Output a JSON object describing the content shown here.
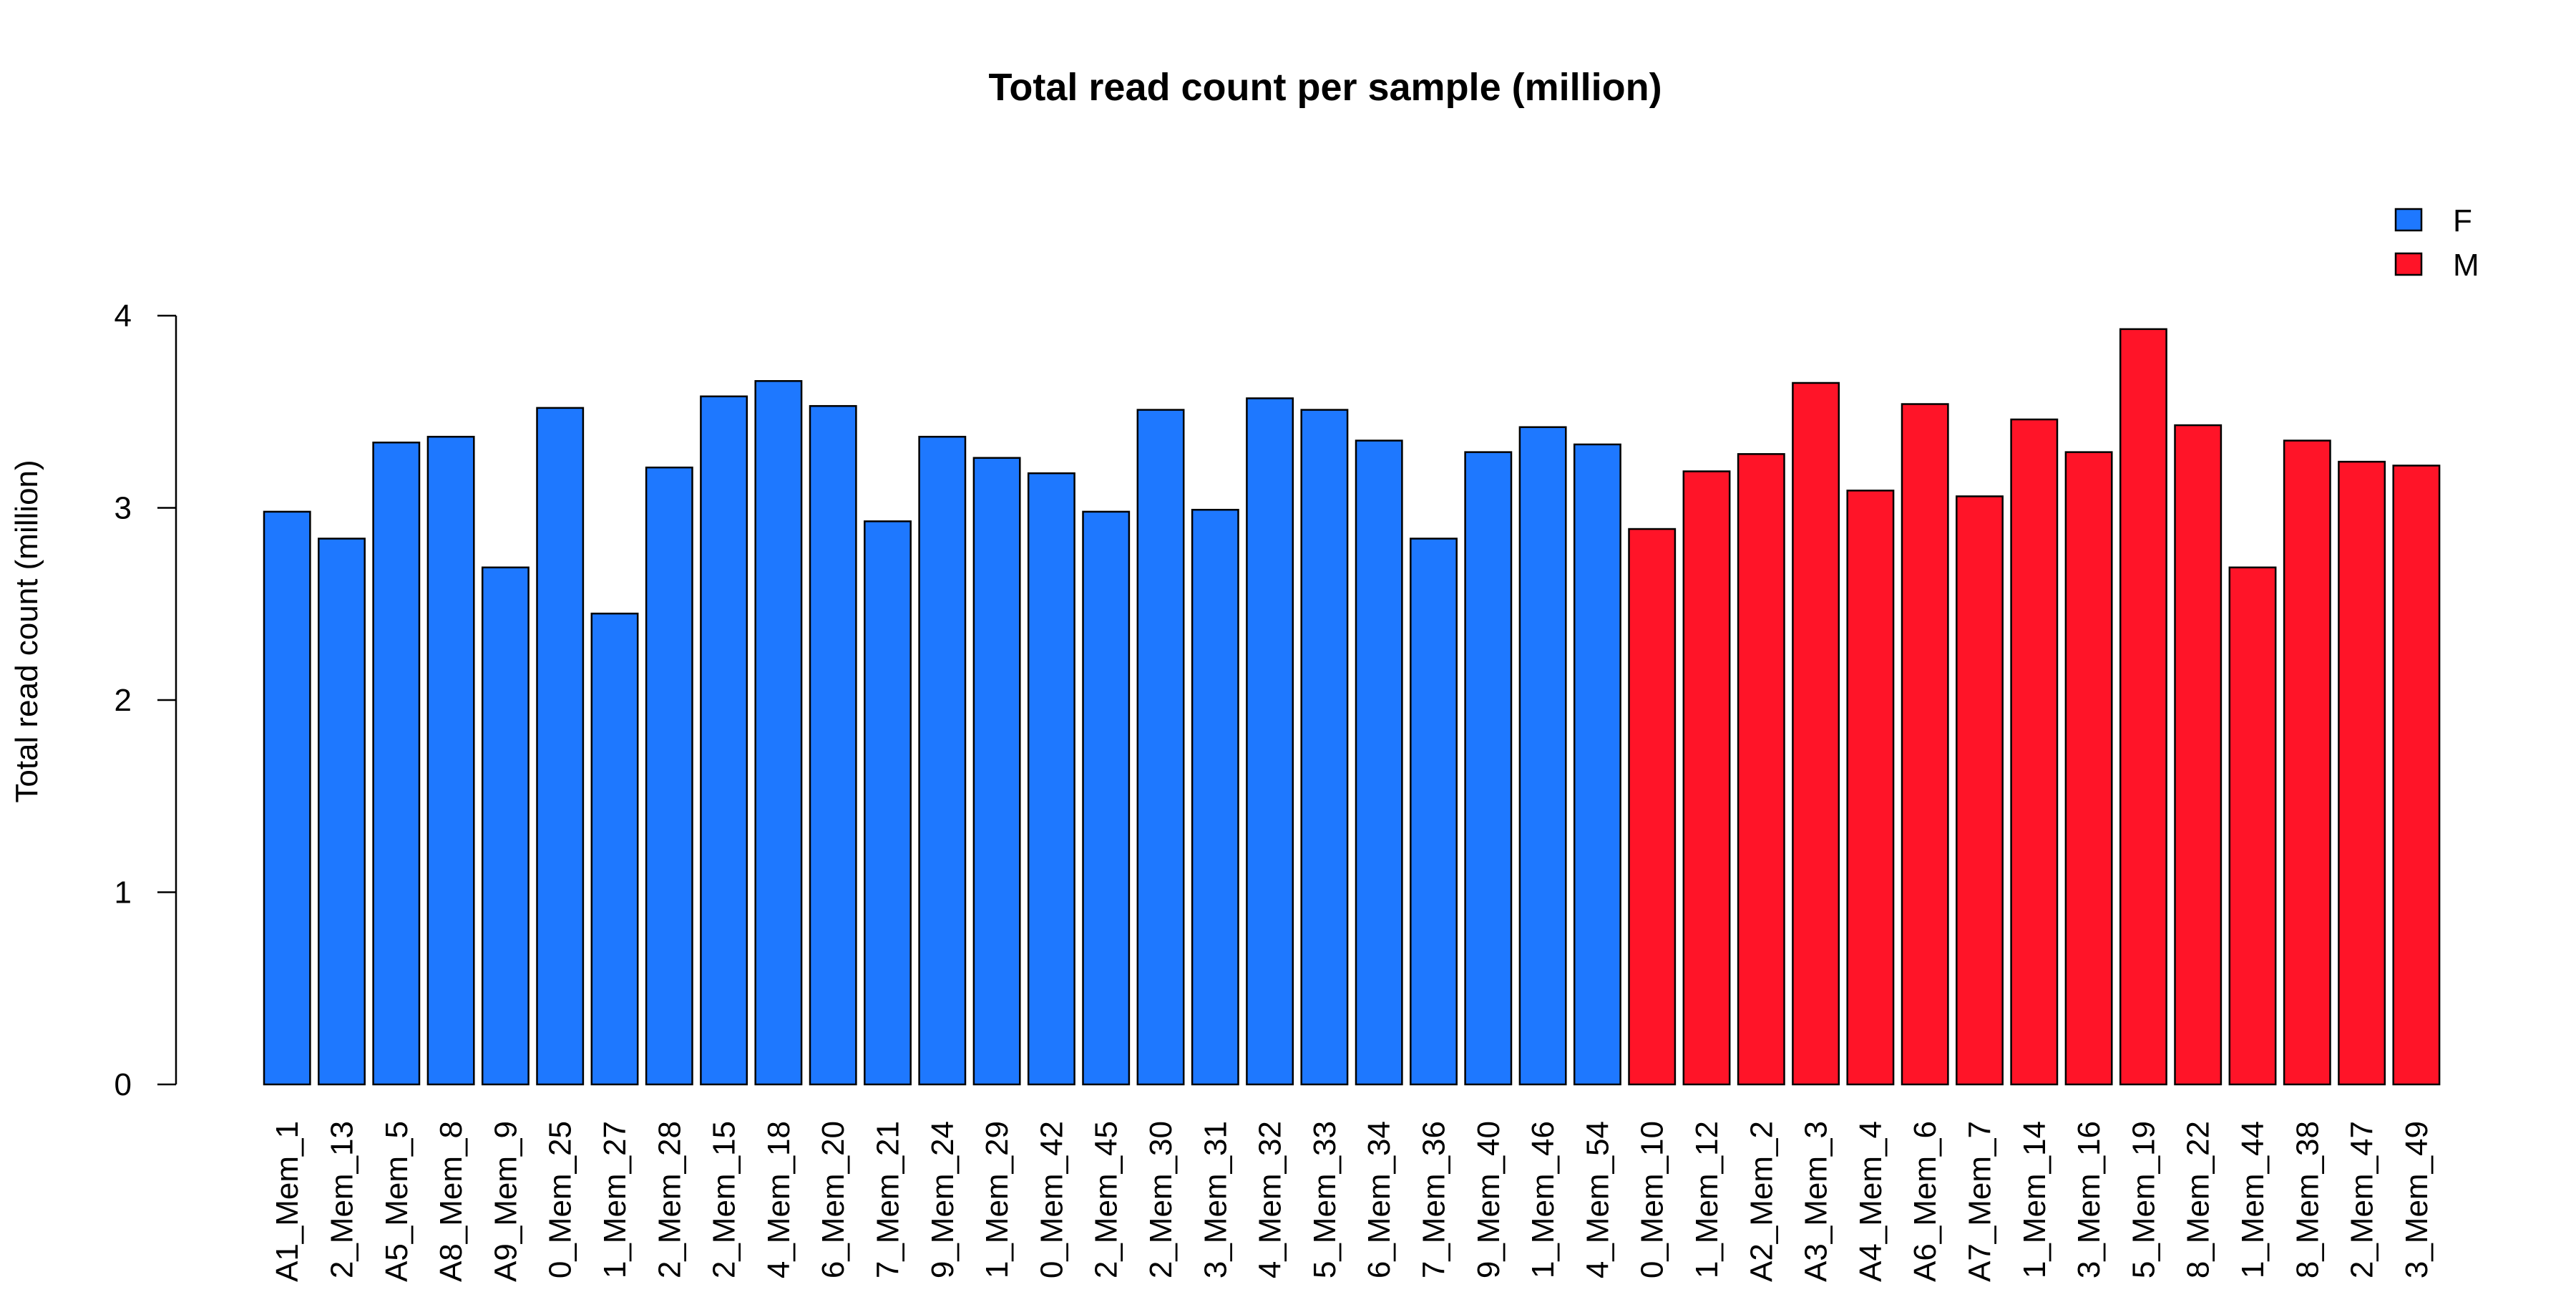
{
  "chart_data": {
    "type": "bar",
    "title": "Total read count per sample (million)",
    "xlabel": "",
    "ylabel": "Total read count (million)",
    "ylim": [
      0,
      4
    ],
    "yticks": [
      "0",
      "1",
      "2",
      "3",
      "4"
    ],
    "ytick_values": [
      0,
      1,
      2,
      3,
      4
    ],
    "grid": false,
    "legend_position": "top-right",
    "legend": [
      {
        "label": "F",
        "color": "#1e78ff"
      },
      {
        "label": "M",
        "color": "#ff1428"
      }
    ],
    "categories": [
      "A1_Mem_1",
      "2_Mem_13",
      "A5_Mem_5",
      "A8_Mem_8",
      "A9_Mem_9",
      "0_Mem_25",
      "1_Mem_27",
      "2_Mem_28",
      "2_Mem_15",
      "4_Mem_18",
      "6_Mem_20",
      "7_Mem_21",
      "9_Mem_24",
      "1_Mem_29",
      "0_Mem_42",
      "2_Mem_45",
      "2_Mem_30",
      "3_Mem_31",
      "4_Mem_32",
      "5_Mem_33",
      "6_Mem_34",
      "7_Mem_36",
      "9_Mem_40",
      "1_Mem_46",
      "4_Mem_54",
      "0_Mem_10",
      "1_Mem_12",
      "A2_Mem_2",
      "A3_Mem_3",
      "A4_Mem_4",
      "A6_Mem_6",
      "A7_Mem_7",
      "1_Mem_14",
      "3_Mem_16",
      "5_Mem_19",
      "8_Mem_22",
      "1_Mem_44",
      "8_Mem_38",
      "2_Mem_47",
      "3_Mem_49"
    ],
    "values": [
      2.98,
      2.84,
      3.34,
      3.37,
      2.69,
      3.52,
      2.45,
      3.21,
      3.58,
      3.66,
      3.53,
      2.93,
      3.37,
      3.26,
      3.18,
      2.98,
      3.51,
      2.99,
      3.57,
      3.51,
      3.35,
      2.84,
      3.29,
      3.42,
      3.33,
      2.89,
      3.19,
      3.28,
      3.65,
      3.09,
      3.54,
      3.06,
      3.46,
      3.29,
      3.93,
      3.43,
      2.69,
      3.35,
      3.24,
      3.22
    ],
    "groups": [
      "F",
      "F",
      "F",
      "F",
      "F",
      "F",
      "F",
      "F",
      "F",
      "F",
      "F",
      "F",
      "F",
      "F",
      "F",
      "F",
      "F",
      "F",
      "F",
      "F",
      "F",
      "F",
      "F",
      "F",
      "F",
      "M",
      "M",
      "M",
      "M",
      "M",
      "M",
      "M",
      "M",
      "M",
      "M",
      "M",
      "M",
      "M",
      "M",
      "M"
    ]
  }
}
